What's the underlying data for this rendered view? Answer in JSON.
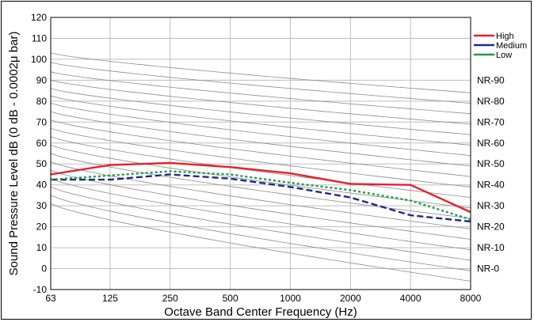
{
  "chart_data": {
    "type": "line",
    "xlabel": "Octave Band Center Frequency (Hz)",
    "ylabel": "Sound Pressure Level dB (0 dB - 0.0002μ bar)",
    "x": [
      63,
      125,
      250,
      500,
      1000,
      2000,
      4000,
      8000
    ],
    "x_tick_labels": [
      "63",
      "125",
      "250",
      "500",
      "1000",
      "2000",
      "4000",
      "8000"
    ],
    "x_scale": "log",
    "xlim": [
      63,
      8000
    ],
    "ylim": [
      -10,
      120
    ],
    "y_ticks": [
      -10,
      0,
      10,
      20,
      30,
      40,
      50,
      60,
      70,
      80,
      90,
      100,
      110,
      120
    ],
    "grid": true,
    "legend_position": "top-right",
    "series": [
      {
        "name": "High",
        "color": "#e8202a",
        "style": "solid",
        "values": [
          45,
          49.5,
          50.5,
          48.5,
          45.5,
          40.5,
          40,
          27
        ]
      },
      {
        "name": "Medium",
        "color": "#1f2a8a",
        "style": "dashed",
        "values": [
          42.5,
          42.5,
          45,
          43,
          39,
          34,
          25.5,
          22.5
        ]
      },
      {
        "name": "Low",
        "color": "#1a9e3c",
        "style": "dotted",
        "values": [
          42.5,
          44.5,
          46.5,
          45,
          41,
          37.5,
          32.5,
          23.5
        ]
      }
    ],
    "nr_curves": {
      "labels": [
        "NR-90",
        "NR-80",
        "NR-70",
        "NR-60",
        "NR-50",
        "NR-40",
        "NR-30",
        "NR-20",
        "NR-10",
        "NR-0"
      ],
      "values_at_63": [
        103,
        94,
        86,
        79,
        71,
        63,
        55,
        47,
        39,
        31
      ],
      "values_at_8000": [
        84,
        74,
        64,
        54,
        44,
        34,
        24,
        14,
        4,
        -6
      ]
    }
  }
}
